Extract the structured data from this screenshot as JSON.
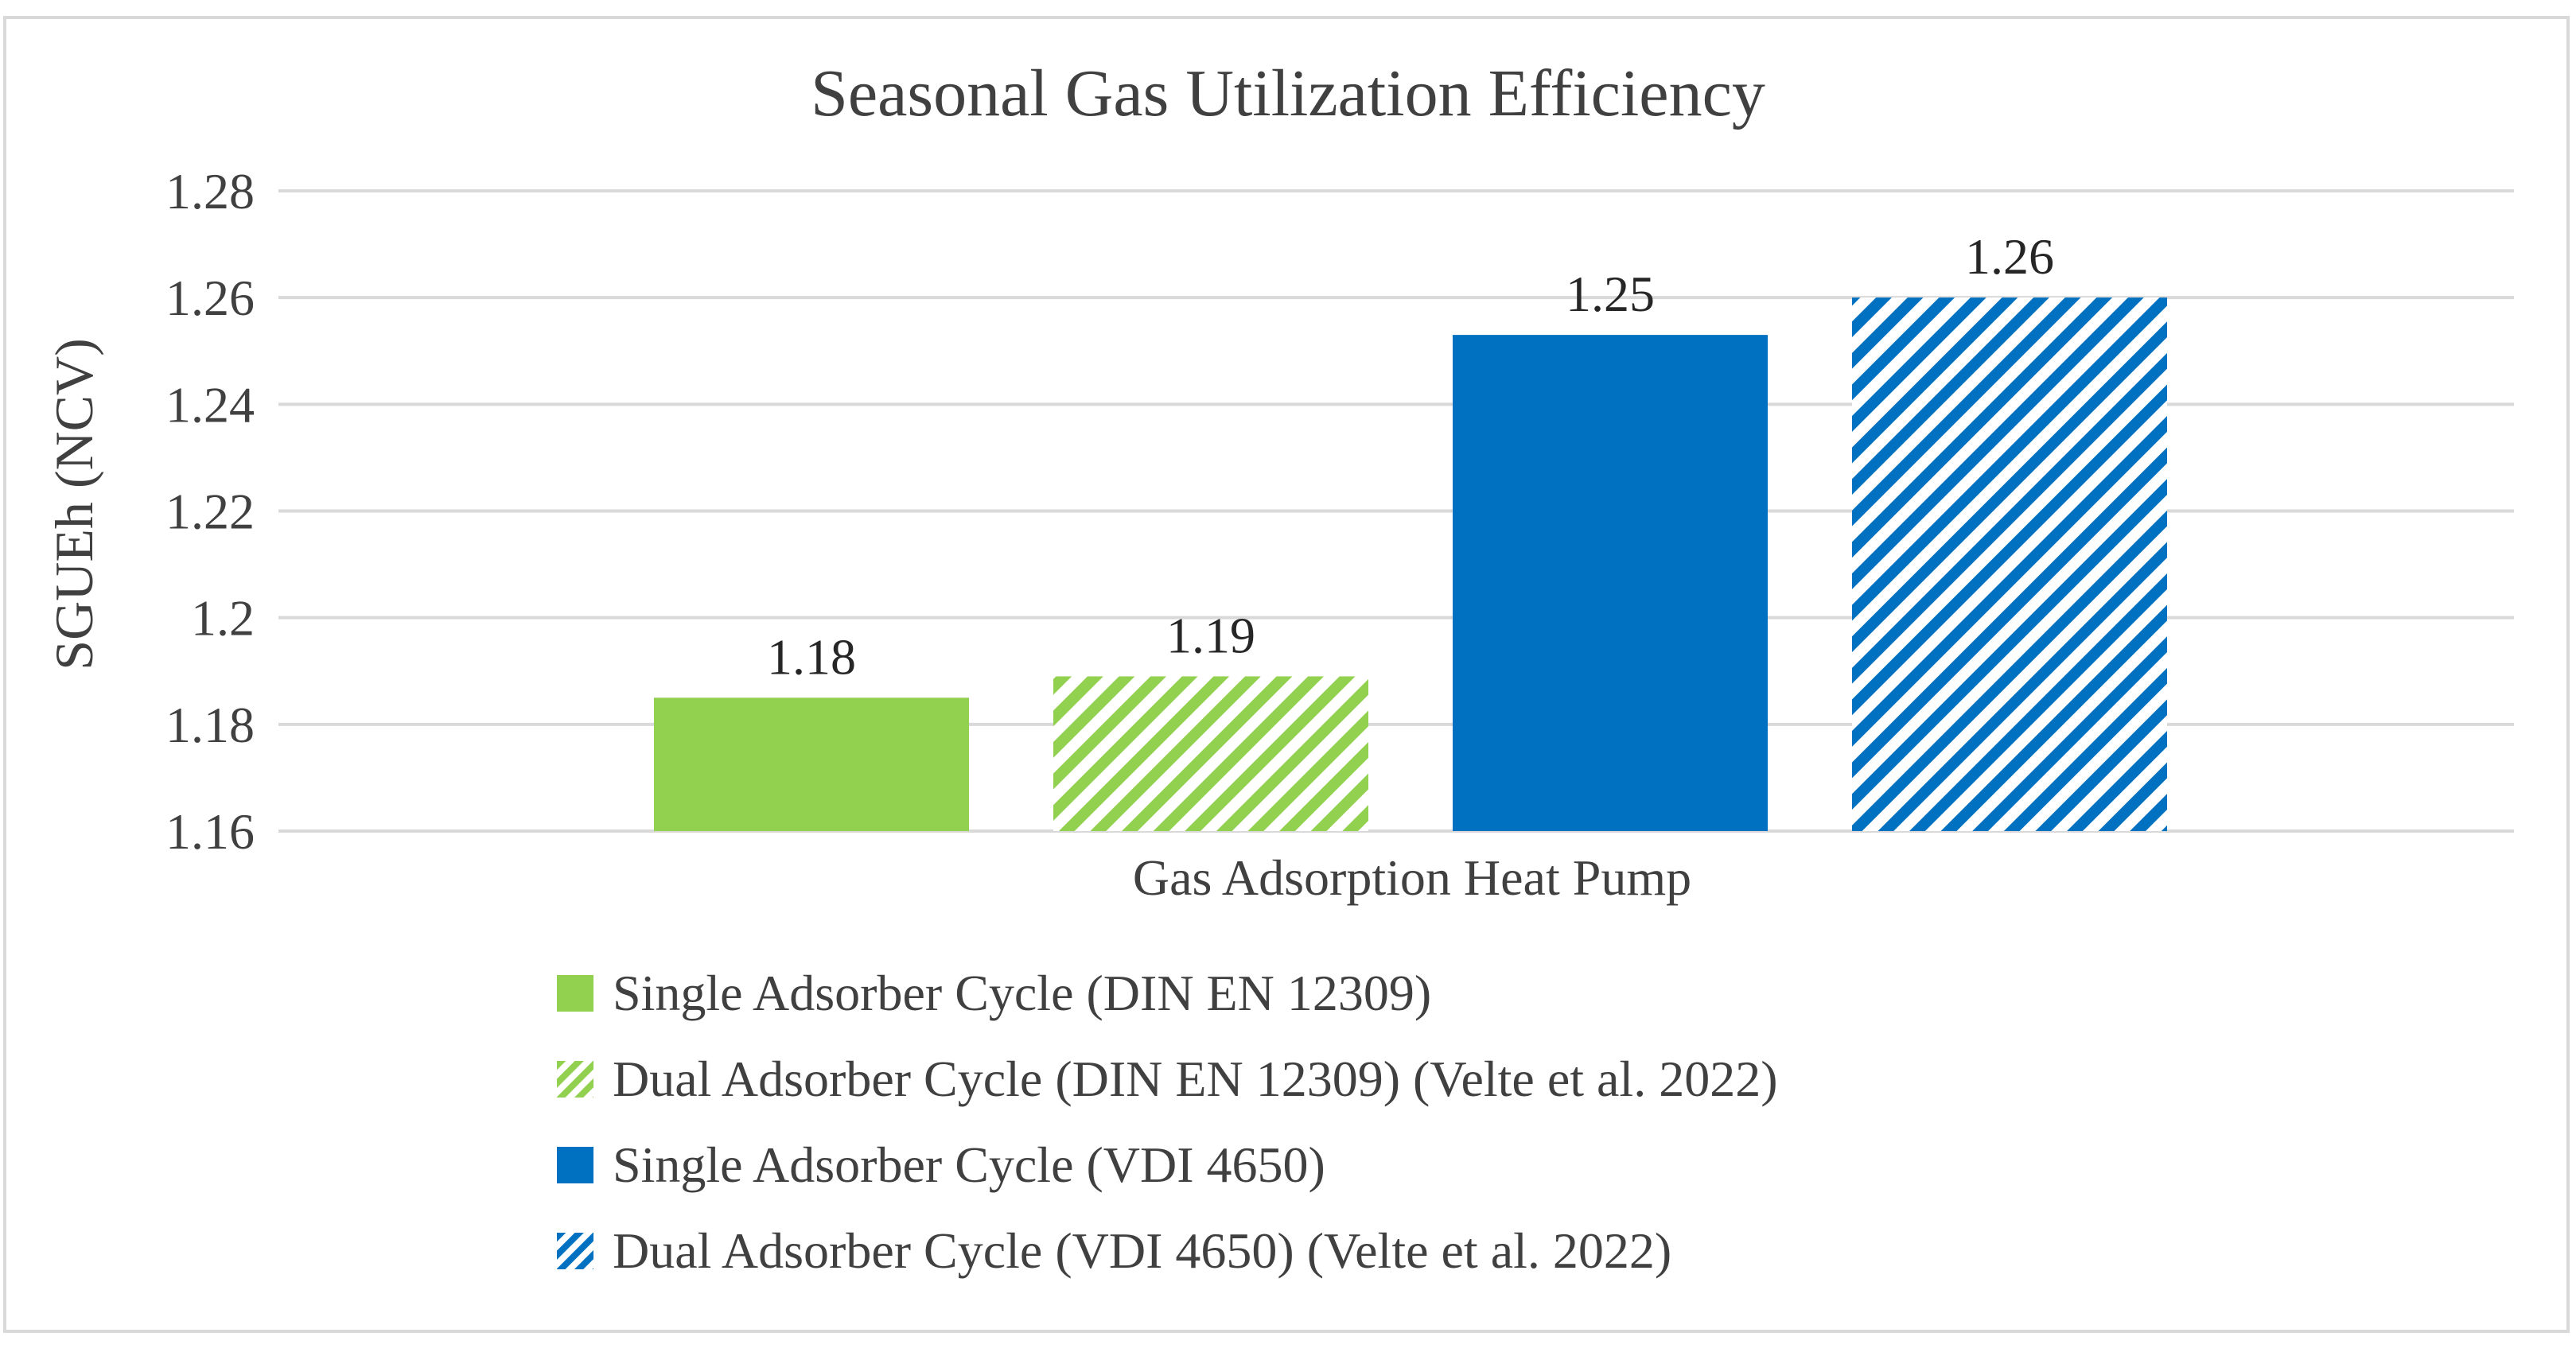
{
  "chart_data": {
    "type": "bar",
    "title": "Seasonal Gas Utilization Efficiency",
    "xlabel": "",
    "ylabel": "SGUEh (NCV)",
    "categories": [
      "Gas Adsorption Heat Pump"
    ],
    "ylim": [
      1.16,
      1.28
    ],
    "yticks": [
      1.16,
      1.18,
      1.2,
      1.22,
      1.24,
      1.26,
      1.28
    ],
    "ytick_labels": [
      "1.16",
      "1.18",
      "1.2",
      "1.22",
      "1.24",
      "1.26",
      "1.28"
    ],
    "grid": true,
    "legend_position": "bottom",
    "series": [
      {
        "name": "Single Adsorber Cycle (DIN EN 12309)",
        "values": [
          1.185
        ],
        "label": "1.18",
        "color": "#92d050",
        "pattern": "solid"
      },
      {
        "name": "Dual Adsorber Cycle (DIN EN 12309) (Velte et al. 2022)",
        "values": [
          1.189
        ],
        "label": "1.19",
        "color": "#92d050",
        "pattern": "diagonal-stripes"
      },
      {
        "name": "Single Adsorber Cycle (VDI 4650)",
        "values": [
          1.253
        ],
        "label": "1.25",
        "color": "#0070c0",
        "pattern": "solid"
      },
      {
        "name": "Dual Adsorber Cycle (VDI 4650) (Velte et al. 2022)",
        "values": [
          1.26
        ],
        "label": "1.26",
        "color": "#0070c0",
        "pattern": "diagonal-stripes"
      }
    ]
  }
}
